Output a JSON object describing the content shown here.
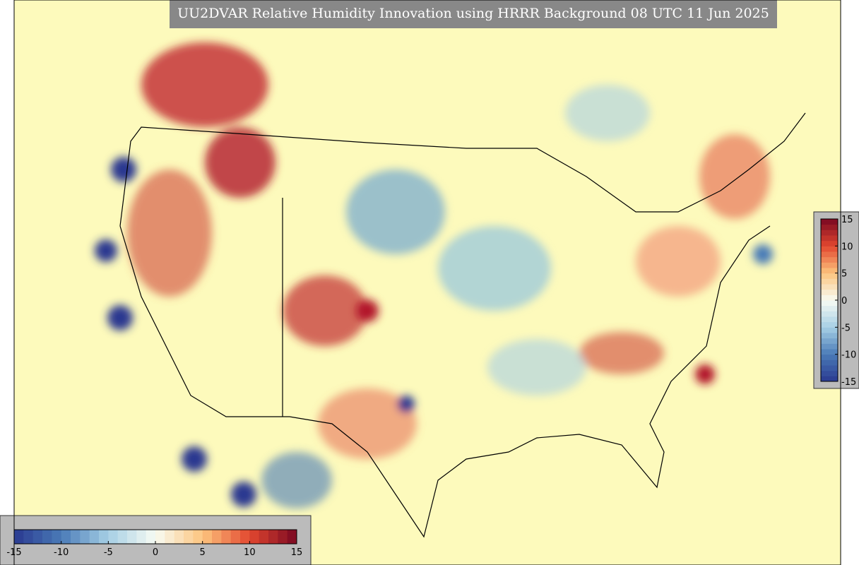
{
  "title": "UU2DVAR Relative Humidity Innovation using HRRR Background 08 UTC 11 Jun 2025",
  "colorbars": [
    {
      "orientation": "horizontal",
      "lim": [
        -15,
        15
      ],
      "ticks": [
        -15,
        -10,
        -5,
        0,
        5,
        10,
        15
      ],
      "colors": [
        "#2a3990",
        "#4a7bb7",
        "#a6cfe4",
        "#f7fbf3",
        "#fdc57e",
        "#e2472f",
        "#7a0822"
      ]
    },
    {
      "orientation": "vertical",
      "lim": [
        -15,
        15
      ],
      "ticks": [
        -15,
        -10,
        -5,
        0,
        5,
        10,
        15
      ],
      "colors": [
        "#2a3990",
        "#4a7bb7",
        "#a6cfe4",
        "#f7fbf3",
        "#fdc57e",
        "#e2472f",
        "#7a0822"
      ]
    }
  ]
}
